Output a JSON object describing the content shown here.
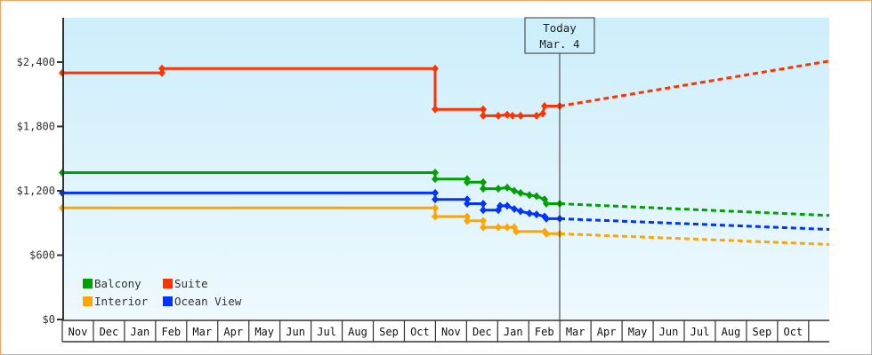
{
  "chart_data": {
    "type": "line",
    "title": "",
    "xlabel": "",
    "ylabel": "",
    "ylim": [
      0,
      2800
    ],
    "y_ticks": [
      {
        "value": 0,
        "label": "$0"
      },
      {
        "value": 600,
        "label": "$600"
      },
      {
        "value": 1200,
        "label": "$1,200"
      },
      {
        "value": 1800,
        "label": "$1,800"
      },
      {
        "value": 2400,
        "label": "$2,400"
      }
    ],
    "x_ticks": [
      "Nov",
      "Dec",
      "Jan",
      "Feb",
      "Mar",
      "Apr",
      "May",
      "Jun",
      "Jul",
      "Aug",
      "Sep",
      "Oct",
      "Nov",
      "Dec",
      "Jan",
      "Feb",
      "Mar",
      "Apr",
      "May",
      "Jun",
      "Jul",
      "Aug",
      "Sep",
      "Oct"
    ],
    "today_marker": {
      "line1": "Today",
      "line2": "Mar. 4"
    },
    "legend": [
      {
        "name": "Balcony",
        "color": "#00a000"
      },
      {
        "name": "Suite",
        "color": "#ff3300"
      },
      {
        "name": "Interior",
        "color": "#ffa500"
      },
      {
        "name": "Ocean View",
        "color": "#0033ff"
      }
    ],
    "series": [
      {
        "name": "Suite",
        "color": "#ff3300",
        "history": [
          [
            70,
            2300
          ],
          [
            182,
            2300
          ],
          [
            182,
            2340
          ],
          [
            489,
            2340
          ],
          [
            489,
            1960
          ],
          [
            543,
            1960
          ],
          [
            543,
            1900
          ],
          [
            560,
            1900
          ],
          [
            570,
            1910
          ],
          [
            576,
            1900
          ],
          [
            585,
            1900
          ],
          [
            603,
            1900
          ],
          [
            610,
            1920
          ],
          [
            612,
            1990
          ],
          [
            629,
            1990
          ]
        ],
        "forecast_end": 2410
      },
      {
        "name": "Balcony",
        "color": "#00a000",
        "history": [
          [
            70,
            1370
          ],
          [
            489,
            1370
          ],
          [
            489,
            1310
          ],
          [
            525,
            1310
          ],
          [
            525,
            1280
          ],
          [
            543,
            1280
          ],
          [
            543,
            1220
          ],
          [
            560,
            1220
          ],
          [
            570,
            1230
          ],
          [
            578,
            1200
          ],
          [
            585,
            1180
          ],
          [
            595,
            1160
          ],
          [
            603,
            1150
          ],
          [
            612,
            1120
          ],
          [
            614,
            1080
          ],
          [
            629,
            1080
          ]
        ],
        "forecast_end": 970
      },
      {
        "name": "Ocean View",
        "color": "#0033ff",
        "history": [
          [
            70,
            1180
          ],
          [
            489,
            1180
          ],
          [
            489,
            1120
          ],
          [
            525,
            1120
          ],
          [
            525,
            1080
          ],
          [
            543,
            1080
          ],
          [
            543,
            1020
          ],
          [
            560,
            1020
          ],
          [
            562,
            1060
          ],
          [
            570,
            1060
          ],
          [
            578,
            1030
          ],
          [
            585,
            1010
          ],
          [
            595,
            990
          ],
          [
            603,
            980
          ],
          [
            612,
            960
          ],
          [
            614,
            940
          ],
          [
            629,
            940
          ]
        ],
        "forecast_end": 840
      },
      {
        "name": "Interior",
        "color": "#ffa500",
        "history": [
          [
            70,
            1040
          ],
          [
            489,
            1040
          ],
          [
            489,
            960
          ],
          [
            525,
            960
          ],
          [
            525,
            920
          ],
          [
            543,
            920
          ],
          [
            543,
            860
          ],
          [
            560,
            860
          ],
          [
            570,
            860
          ],
          [
            578,
            860
          ],
          [
            580,
            820
          ],
          [
            612,
            820
          ],
          [
            614,
            800
          ],
          [
            629,
            800
          ]
        ],
        "forecast_end": 700
      }
    ]
  }
}
